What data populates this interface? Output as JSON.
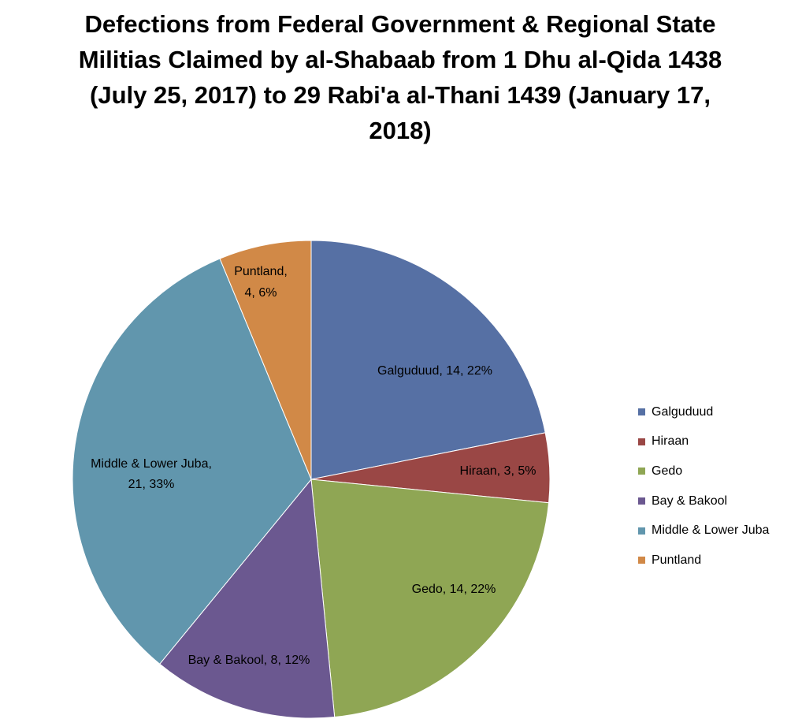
{
  "chart_data": {
    "type": "pie",
    "title": "Defections from Federal Government & Regional State Militias Claimed by al-Shabaab from 1 Dhu al-Qida 1438 (July 25, 2017) to 29 Rabi'a al-Thani 1439 (January 17, 2018)",
    "slices": [
      {
        "name": "Galguduud",
        "value": 14,
        "percent": "22%",
        "label": "Galguduud, 14, 22%",
        "color": "#5670A4"
      },
      {
        "name": "Hiraan",
        "value": 3,
        "percent": "5%",
        "label": "Hiraan, 3, 5%",
        "color": "#9A4745"
      },
      {
        "name": "Gedo",
        "value": 14,
        "percent": "22%",
        "label": "Gedo, 14, 22%",
        "color": "#8FA654"
      },
      {
        "name": "Bay & Bakool",
        "value": 8,
        "percent": "12%",
        "label": "Bay & Bakool, 8, 12%",
        "color": "#6B5890"
      },
      {
        "name": "Middle & Lower Juba",
        "value": 21,
        "percent": "33%",
        "label_lines": [
          "Middle & Lower Juba,",
          "21, 33%"
        ],
        "color": "#6196AD"
      },
      {
        "name": "Puntland",
        "value": 4,
        "percent": "6%",
        "label_lines": [
          "Puntland,",
          "4, 6%"
        ],
        "color": "#D18947"
      }
    ],
    "legend": {
      "position": "right",
      "items": [
        "Galguduud",
        "Hiraan",
        "Gedo",
        "Bay & Bakool",
        "Middle & Lower Juba",
        "Puntland"
      ]
    }
  }
}
